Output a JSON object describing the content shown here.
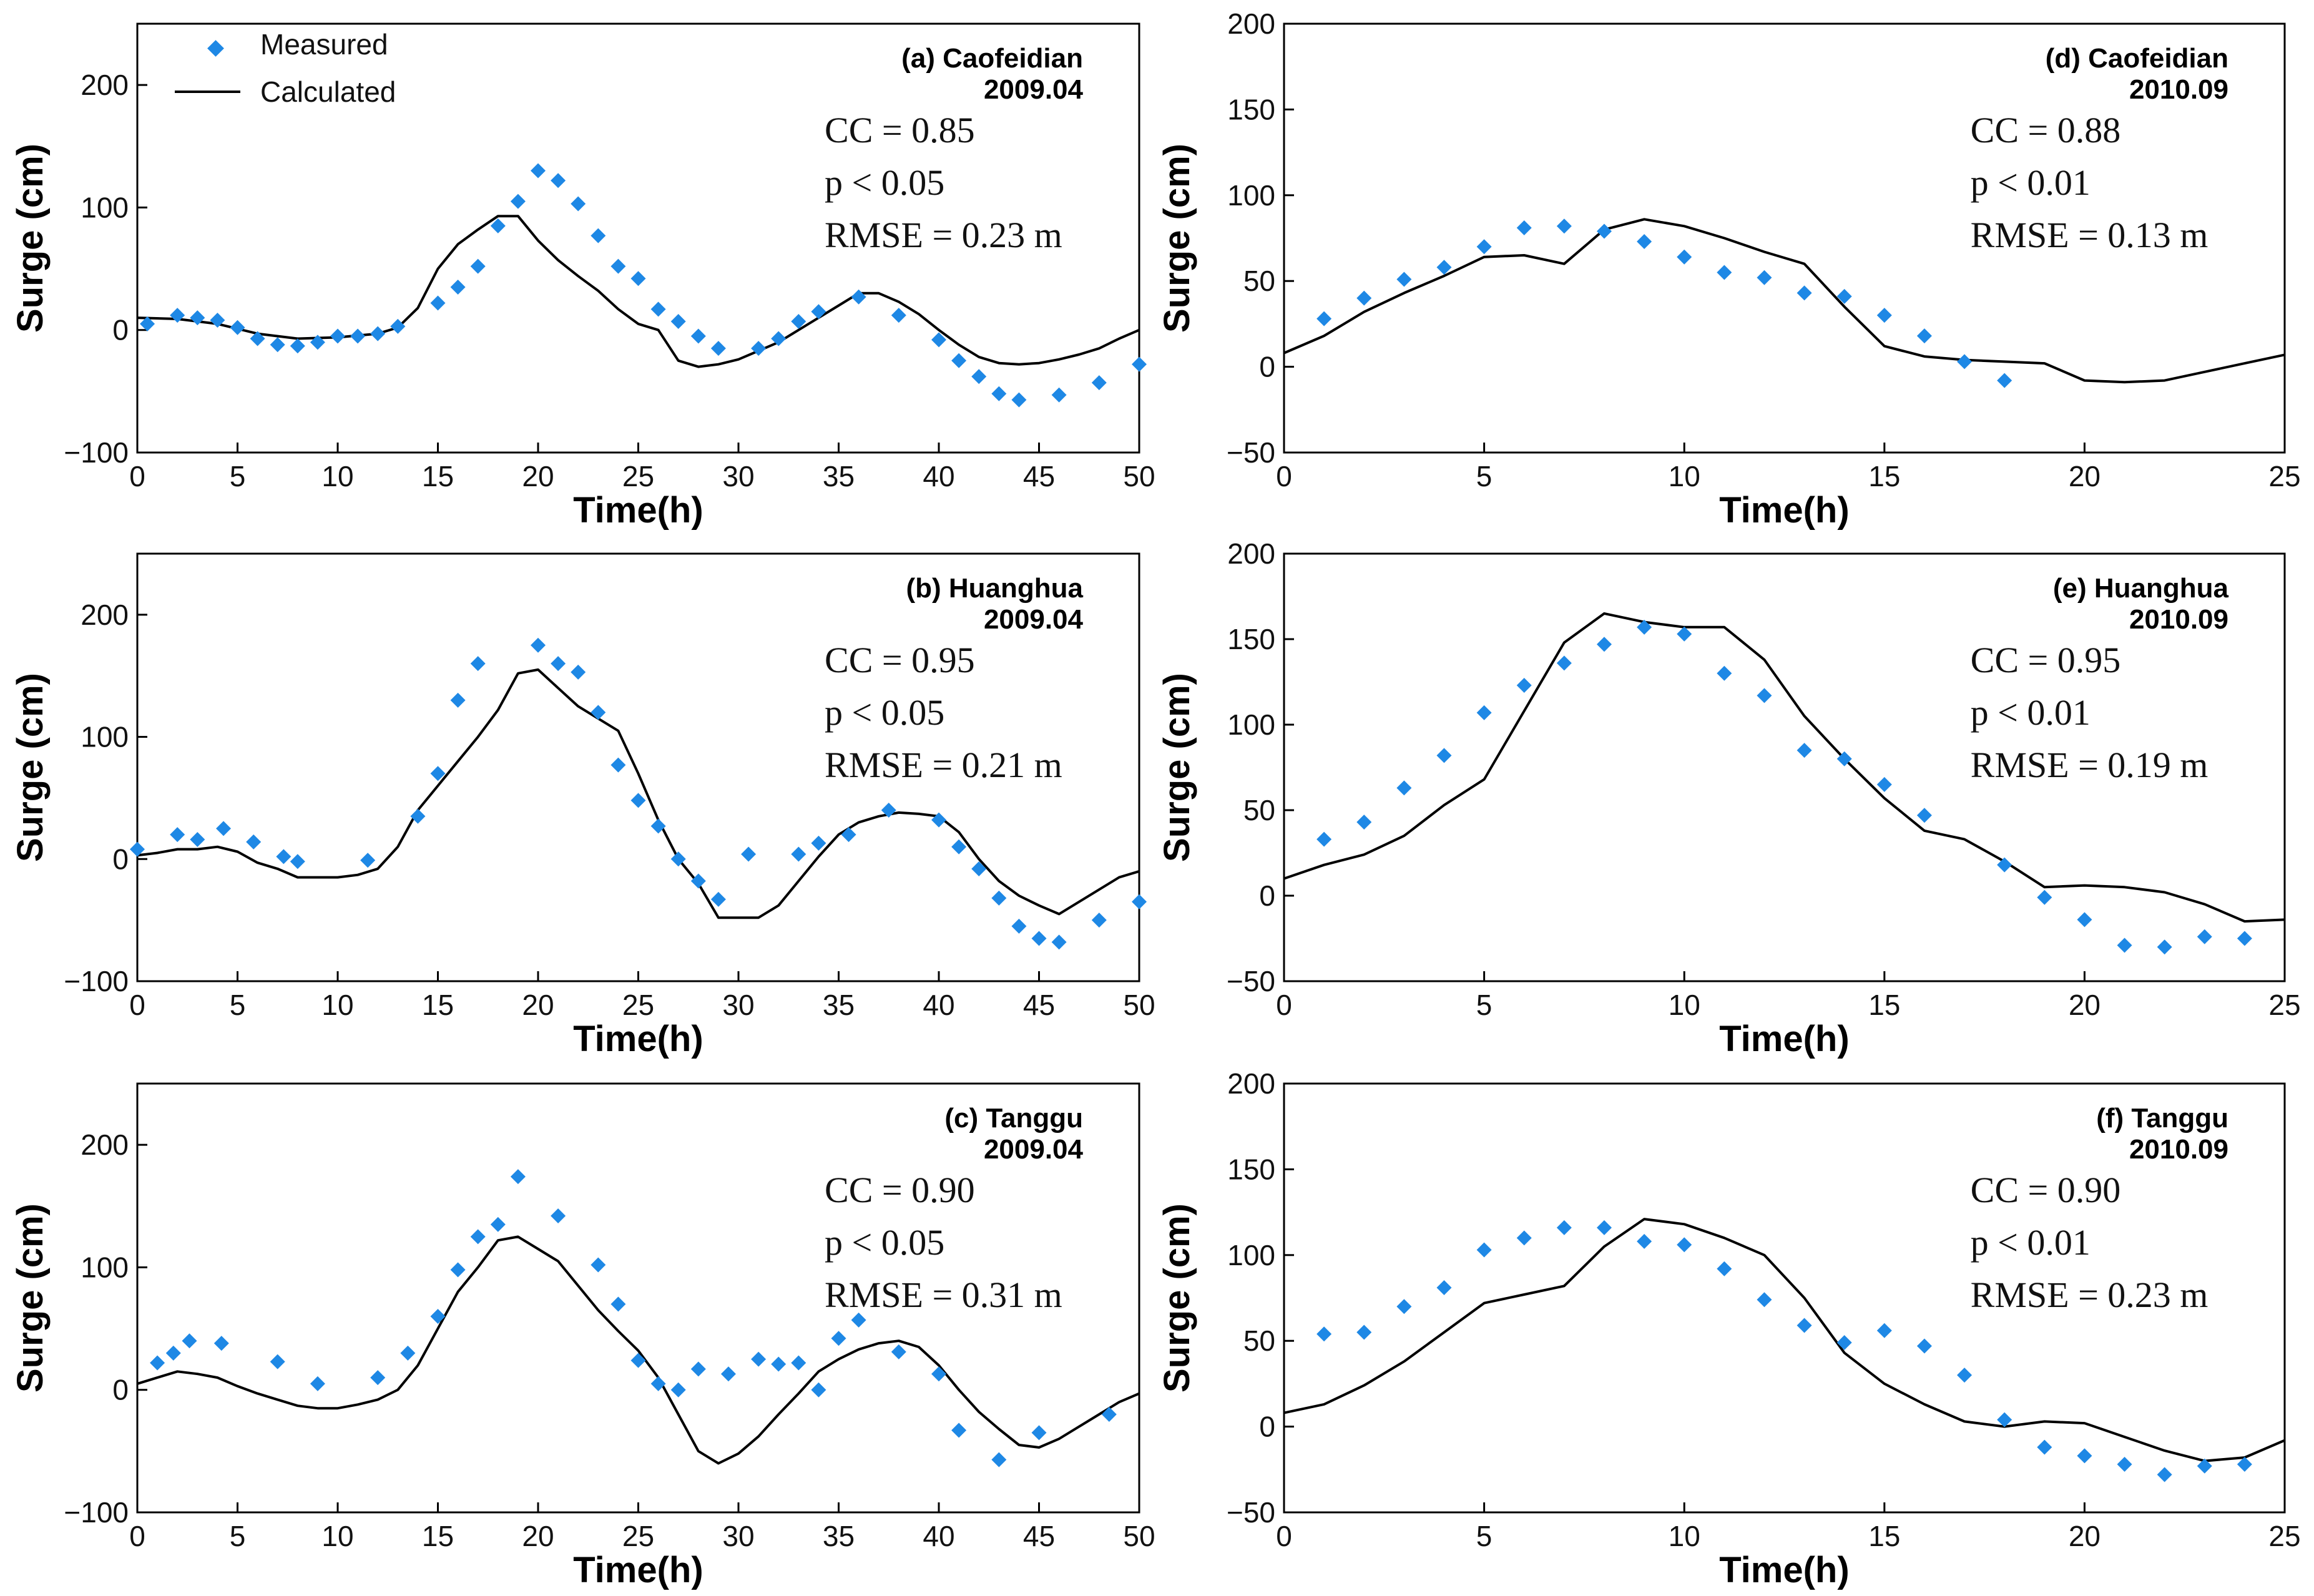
{
  "legend": {
    "measured": "Measured",
    "calculated": "Calculated"
  },
  "colors": {
    "measured": "#1e88e5",
    "calculated": "#000000"
  },
  "chart_data": [
    {
      "id": "a",
      "type": "scatter+line",
      "station": "(a) Caofeidian",
      "date": "2009.04",
      "stats": [
        "CC = 0.85",
        "p < 0.05",
        "RMSE = 0.23 m"
      ],
      "xlabel": "Time(h)",
      "ylabel": "Surge (cm)",
      "xlim": [
        0,
        50
      ],
      "ylim": [
        -100,
        250
      ],
      "xticks": [
        0,
        5,
        10,
        15,
        20,
        25,
        30,
        35,
        40,
        45,
        50
      ],
      "yticks": [
        -100,
        0,
        100,
        200
      ],
      "ytick_labels": [
        "−100",
        "0",
        "100",
        "200"
      ],
      "series": [
        {
          "name": "Measured",
          "kind": "scatter",
          "x": [
            0.5,
            2,
            3,
            4,
            5,
            6,
            7,
            8,
            9,
            10,
            11,
            12,
            13,
            15,
            16,
            17,
            18,
            19,
            20,
            21,
            22,
            23,
            24,
            25,
            26,
            27,
            28,
            29,
            31,
            32,
            33,
            34,
            36,
            38,
            40,
            41,
            42,
            43,
            44,
            46,
            48,
            50
          ],
          "y": [
            5,
            12,
            10,
            8,
            2,
            -7,
            -12,
            -13,
            -10,
            -5,
            -5,
            -3,
            3,
            22,
            35,
            52,
            85,
            105,
            130,
            122,
            103,
            77,
            52,
            42,
            17,
            7,
            -5,
            -15,
            -15,
            -7,
            7,
            15,
            27,
            12,
            -8,
            -25,
            -38,
            -52,
            -57,
            -53,
            -43,
            -28
          ]
        },
        {
          "name": "Calculated",
          "kind": "line",
          "x": [
            0,
            2,
            4,
            6,
            8,
            10,
            12,
            13,
            14,
            15,
            16,
            17,
            18,
            19,
            20,
            21,
            22,
            23,
            24,
            25,
            26,
            27,
            28,
            29,
            30,
            31,
            32,
            33,
            34,
            35,
            36,
            37,
            38,
            39,
            40,
            41,
            42,
            43,
            44,
            45,
            46,
            47,
            48,
            49,
            50
          ],
          "y": [
            10,
            9,
            5,
            -3,
            -7,
            -6,
            -3,
            2,
            18,
            50,
            70,
            82,
            93,
            93,
            73,
            57,
            44,
            32,
            17,
            5,
            0,
            -25,
            -30,
            -28,
            -24,
            -17,
            -10,
            0,
            10,
            20,
            30,
            30,
            23,
            13,
            0,
            -12,
            -22,
            -27,
            -28,
            -27,
            -24,
            -20,
            -15,
            -7,
            0
          ]
        }
      ]
    },
    {
      "id": "b",
      "type": "scatter+line",
      "station": "(b) Huanghua",
      "date": "2009.04",
      "stats": [
        "CC = 0.95",
        "p < 0.05",
        "RMSE = 0.21 m"
      ],
      "xlabel": "Time(h)",
      "ylabel": "Surge (cm)",
      "xlim": [
        0,
        50
      ],
      "ylim": [
        -100,
        250
      ],
      "xticks": [
        0,
        5,
        10,
        15,
        20,
        25,
        30,
        35,
        40,
        45,
        50
      ],
      "yticks": [
        -100,
        0,
        100,
        200
      ],
      "ytick_labels": [
        "−100",
        "0",
        "100",
        "200"
      ],
      "series": [
        {
          "name": "Measured",
          "kind": "scatter",
          "x": [
            0,
            2,
            3,
            4.3,
            5.8,
            7.3,
            8,
            11.5,
            14,
            15,
            16,
            17,
            20,
            21,
            22,
            23,
            24,
            25,
            26,
            27,
            28,
            29,
            30.5,
            33,
            34,
            35.5,
            37.5,
            40,
            41,
            42,
            43,
            44,
            45,
            46,
            48,
            50
          ],
          "y": [
            8,
            20,
            16,
            25,
            14,
            2,
            -2,
            -1,
            35,
            70,
            130,
            160,
            175,
            160,
            153,
            120,
            77,
            48,
            27,
            0,
            -18,
            -33,
            4,
            4,
            13,
            20,
            40,
            32,
            10,
            -8,
            -32,
            -55,
            -65,
            -68,
            -50,
            -35
          ]
        },
        {
          "name": "Calculated",
          "kind": "line",
          "x": [
            0,
            1,
            2,
            3,
            4,
            5,
            6,
            7,
            8,
            9,
            10,
            11,
            12,
            13,
            14,
            15,
            16,
            17,
            18,
            19,
            20,
            21,
            22,
            23,
            24,
            25,
            26,
            27,
            28,
            29,
            30,
            31,
            32,
            33,
            34,
            35,
            36,
            37,
            38,
            39,
            40,
            41,
            42,
            43,
            44,
            45,
            46,
            47,
            48,
            49,
            50
          ],
          "y": [
            3,
            5,
            8,
            8,
            10,
            6,
            -3,
            -8,
            -15,
            -15,
            -15,
            -13,
            -8,
            10,
            40,
            60,
            80,
            100,
            122,
            152,
            155,
            140,
            125,
            115,
            105,
            70,
            32,
            0,
            -20,
            -48,
            -48,
            -48,
            -38,
            -18,
            2,
            20,
            30,
            35,
            38,
            37,
            35,
            22,
            0,
            -18,
            -30,
            -38,
            -45,
            -35,
            -25,
            -15,
            -10
          ]
        }
      ]
    },
    {
      "id": "c",
      "type": "scatter+line",
      "station": "(c) Tanggu",
      "date": "2009.04",
      "stats": [
        "CC = 0.90",
        "p < 0.05",
        "RMSE = 0.31 m"
      ],
      "xlabel": "Time(h)",
      "ylabel": "Surge (cm)",
      "xlim": [
        0,
        50
      ],
      "ylim": [
        -100,
        250
      ],
      "xticks": [
        0,
        5,
        10,
        15,
        20,
        25,
        30,
        35,
        40,
        45,
        50
      ],
      "yticks": [
        -100,
        0,
        100,
        200
      ],
      "ytick_labels": [
        "−100",
        "0",
        "100",
        "200"
      ],
      "series": [
        {
          "name": "Measured",
          "kind": "scatter",
          "x": [
            1,
            1.8,
            2.6,
            4.2,
            7,
            9,
            12,
            13.5,
            15,
            16,
            17,
            18,
            19,
            21,
            23,
            24,
            25,
            26,
            27,
            28,
            29.5,
            31,
            32,
            33,
            34,
            35,
            36,
            38,
            40,
            41,
            43,
            45,
            48.5
          ],
          "y": [
            22,
            30,
            40,
            38,
            23,
            5,
            10,
            30,
            60,
            98,
            125,
            135,
            174,
            142,
            102,
            70,
            24,
            5,
            0,
            17,
            13,
            25,
            21,
            22,
            0,
            42,
            57,
            31,
            13,
            -33,
            -57,
            -35,
            -20
          ]
        },
        {
          "name": "Calculated",
          "kind": "line",
          "x": [
            0,
            1,
            2,
            3,
            4,
            5,
            6,
            7,
            8,
            9,
            10,
            11,
            12,
            13,
            14,
            15,
            16,
            17,
            18,
            19,
            20,
            21,
            22,
            23,
            24,
            25,
            26,
            27,
            28,
            29,
            30,
            31,
            32,
            33,
            34,
            35,
            36,
            37,
            38,
            39,
            40,
            41,
            42,
            43,
            44,
            45,
            46,
            47,
            48,
            49,
            50
          ],
          "y": [
            5,
            10,
            15,
            13,
            10,
            3,
            -3,
            -8,
            -13,
            -15,
            -15,
            -12,
            -8,
            0,
            20,
            50,
            80,
            100,
            122,
            125,
            115,
            105,
            85,
            65,
            48,
            32,
            10,
            -20,
            -50,
            -60,
            -52,
            -38,
            -20,
            -3,
            15,
            25,
            33,
            38,
            40,
            35,
            20,
            0,
            -18,
            -32,
            -45,
            -47,
            -40,
            -30,
            -20,
            -10,
            -3
          ]
        }
      ]
    },
    {
      "id": "d",
      "type": "scatter+line",
      "station": "(d) Caofeidian",
      "date": "2010.09",
      "stats": [
        "CC = 0.88",
        "p < 0.01",
        "RMSE = 0.13 m"
      ],
      "xlabel": "Time(h)",
      "ylabel": "Surge (cm)",
      "xlim": [
        0,
        25
      ],
      "ylim": [
        -50,
        200
      ],
      "xticks": [
        0,
        5,
        10,
        15,
        20,
        25
      ],
      "yticks": [
        -50,
        0,
        50,
        100,
        150,
        200
      ],
      "ytick_labels": [
        "−50",
        "0",
        "50",
        "100",
        "150",
        "200"
      ],
      "series": [
        {
          "name": "Measured",
          "kind": "scatter",
          "x": [
            1,
            2,
            3,
            4,
            5,
            6,
            7,
            8,
            9,
            10,
            11,
            12,
            13,
            14,
            15,
            16,
            17,
            18
          ],
          "y": [
            28,
            40,
            51,
            58,
            70,
            81,
            82,
            79,
            73,
            64,
            55,
            52,
            43,
            41,
            30,
            18,
            3,
            -8
          ]
        },
        {
          "name": "Calculated",
          "kind": "line",
          "x": [
            0,
            1,
            2,
            3,
            4,
            5,
            6,
            7,
            8,
            9,
            10,
            11,
            12,
            13,
            14,
            15,
            16,
            17,
            18,
            19,
            20,
            21,
            22,
            23,
            24,
            25
          ],
          "y": [
            8,
            18,
            32,
            43,
            53,
            64,
            65,
            60,
            80,
            86,
            82,
            75,
            67,
            60,
            35,
            12,
            6,
            4,
            3,
            2,
            -8,
            -9,
            -8,
            -3,
            2,
            7
          ]
        }
      ]
    },
    {
      "id": "e",
      "type": "scatter+line",
      "station": "(e) Huanghua",
      "date": "2010.09",
      "stats": [
        "CC = 0.95",
        "p < 0.01",
        "RMSE = 0.19 m"
      ],
      "xlabel": "Time(h)",
      "ylabel": "Surge (cm)",
      "xlim": [
        0,
        25
      ],
      "ylim": [
        -50,
        200
      ],
      "xticks": [
        0,
        5,
        10,
        15,
        20,
        25
      ],
      "yticks": [
        -50,
        0,
        50,
        100,
        150,
        200
      ],
      "ytick_labels": [
        "−50",
        "0",
        "50",
        "100",
        "150",
        "200"
      ],
      "series": [
        {
          "name": "Measured",
          "kind": "scatter",
          "x": [
            1,
            2,
            3,
            4,
            5,
            6,
            7,
            8,
            9,
            10,
            11,
            12,
            13,
            14,
            15,
            16,
            18,
            19,
            20,
            21,
            22,
            23,
            24
          ],
          "y": [
            33,
            43,
            63,
            82,
            107,
            123,
            136,
            147,
            157,
            153,
            130,
            117,
            85,
            80,
            65,
            47,
            18,
            -1,
            -14,
            -29,
            -30,
            -24,
            -25
          ]
        },
        {
          "name": "Calculated",
          "kind": "line",
          "x": [
            0,
            1,
            2,
            3,
            4,
            5,
            6,
            7,
            8,
            9,
            10,
            11,
            12,
            13,
            14,
            15,
            16,
            17,
            18,
            19,
            20,
            21,
            22,
            23,
            24,
            25
          ],
          "y": [
            10,
            18,
            24,
            35,
            53,
            68,
            108,
            148,
            165,
            160,
            157,
            157,
            138,
            105,
            80,
            57,
            38,
            33,
            20,
            5,
            6,
            5,
            2,
            -5,
            -15,
            -14
          ]
        }
      ]
    },
    {
      "id": "f",
      "type": "scatter+line",
      "station": "(f) Tanggu",
      "date": "2010.09",
      "stats": [
        "CC = 0.90",
        "p < 0.01",
        "RMSE = 0.23 m"
      ],
      "xlabel": "Time(h)",
      "ylabel": "Surge (cm)",
      "xlim": [
        0,
        25
      ],
      "ylim": [
        -50,
        200
      ],
      "xticks": [
        0,
        5,
        10,
        15,
        20,
        25
      ],
      "yticks": [
        -50,
        0,
        50,
        100,
        150,
        200
      ],
      "ytick_labels": [
        "−50",
        "0",
        "50",
        "100",
        "150",
        "200"
      ],
      "series": [
        {
          "name": "Measured",
          "kind": "scatter",
          "x": [
            1,
            2,
            3,
            4,
            5,
            6,
            7,
            8,
            9,
            10,
            11,
            12,
            13,
            14,
            15,
            16,
            17,
            18,
            19,
            20,
            21,
            22,
            23,
            24
          ],
          "y": [
            54,
            55,
            70,
            81,
            103,
            110,
            116,
            116,
            108,
            106,
            92,
            74,
            59,
            49,
            56,
            47,
            30,
            4,
            -12,
            -17,
            -22,
            -28,
            -23,
            -22
          ]
        },
        {
          "name": "Calculated",
          "kind": "line",
          "x": [
            0,
            1,
            2,
            3,
            4,
            5,
            6,
            7,
            8,
            9,
            10,
            11,
            12,
            13,
            14,
            15,
            16,
            17,
            18,
            19,
            20,
            21,
            22,
            23,
            24,
            25
          ],
          "y": [
            8,
            13,
            24,
            38,
            55,
            72,
            77,
            82,
            105,
            121,
            118,
            110,
            100,
            75,
            43,
            25,
            13,
            3,
            0,
            3,
            2,
            -6,
            -14,
            -20,
            -18,
            -8
          ]
        }
      ]
    }
  ]
}
